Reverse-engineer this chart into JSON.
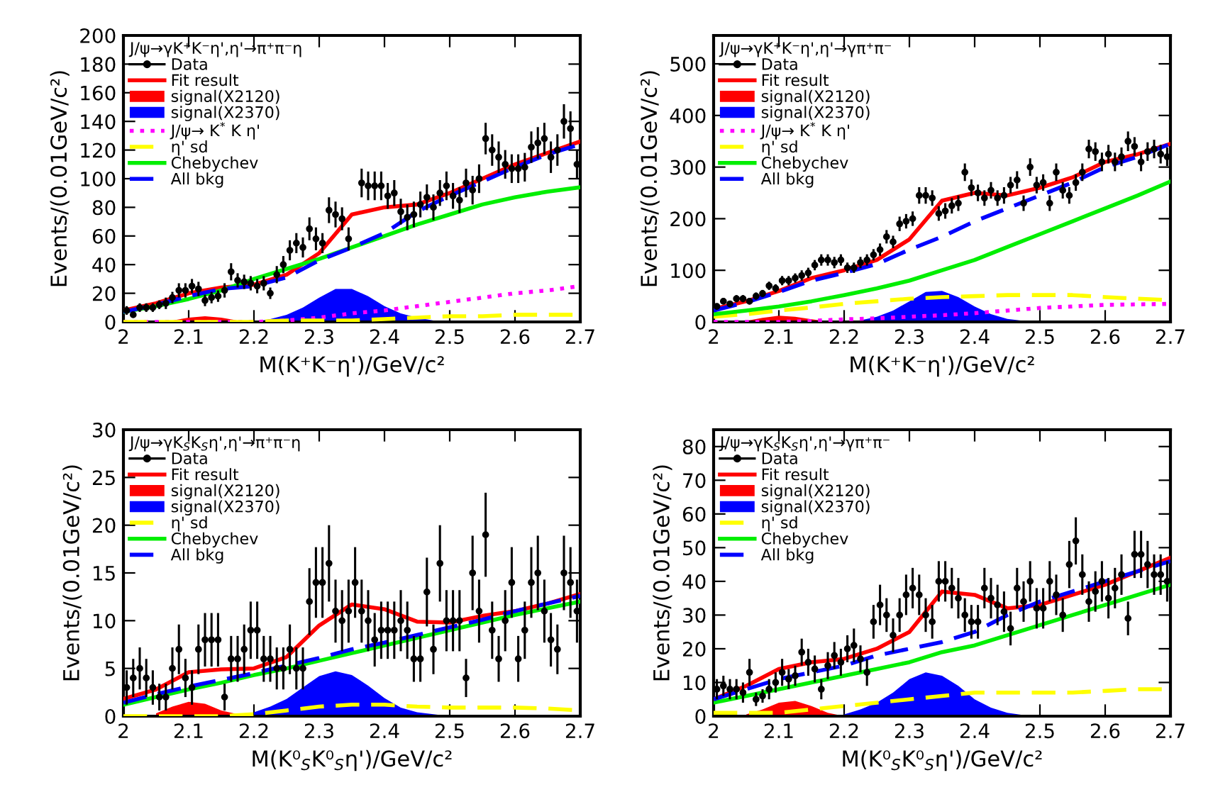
{
  "chart_data": [
    {
      "type": "scatter",
      "legend": "top left",
      "legend_title": "J/ψ→γK⁺K⁻η',η'→π⁺π⁻η",
      "xlabel": "M(K⁺K⁻η')/GeV/c²",
      "ylabel": "Events/(0.01GeV/c²)",
      "xlim": [
        2,
        2.7
      ],
      "xticks": [
        2,
        2.1,
        2.2,
        2.3,
        2.4,
        2.5,
        2.6,
        2.7
      ],
      "ylim": [
        0,
        200
      ],
      "yticks": [
        0,
        20,
        40,
        60,
        80,
        100,
        120,
        140,
        160,
        180,
        200
      ],
      "series": [
        {
          "name": "Data",
          "color": "#000000",
          "marker": "circle",
          "x": [
            2.005,
            2.015,
            2.025,
            2.035,
            2.045,
            2.055,
            2.065,
            2.075,
            2.085,
            2.095,
            2.105,
            2.115,
            2.125,
            2.135,
            2.145,
            2.155,
            2.165,
            2.175,
            2.185,
            2.195,
            2.205,
            2.215,
            2.225,
            2.235,
            2.245,
            2.255,
            2.265,
            2.275,
            2.285,
            2.295,
            2.305,
            2.315,
            2.325,
            2.335,
            2.345,
            2.365,
            2.375,
            2.385,
            2.395,
            2.405,
            2.415,
            2.425,
            2.435,
            2.445,
            2.455,
            2.465,
            2.475,
            2.485,
            2.495,
            2.505,
            2.515,
            2.525,
            2.535,
            2.545,
            2.555,
            2.565,
            2.575,
            2.585,
            2.595,
            2.605,
            2.615,
            2.625,
            2.635,
            2.645,
            2.655,
            2.665,
            2.675,
            2.685,
            2.695
          ],
          "values": [
            8,
            5,
            10,
            10,
            10,
            12,
            13,
            17,
            22,
            22,
            25,
            23,
            15,
            17,
            18,
            22,
            35,
            29,
            28,
            27,
            25,
            27,
            20,
            33,
            40,
            50,
            55,
            52,
            65,
            58,
            55,
            78,
            75,
            72,
            58,
            97,
            95,
            95,
            95,
            88,
            90,
            77,
            73,
            75,
            82,
            87,
            80,
            90,
            95,
            88,
            85,
            97,
            92,
            100,
            128,
            120,
            115,
            110,
            107,
            107,
            108,
            122,
            125,
            128,
            115,
            120,
            140,
            135,
            110
          ],
          "errors": [
            3,
            2,
            3,
            3,
            3,
            3,
            4,
            4,
            5,
            5,
            5,
            5,
            4,
            4,
            4,
            5,
            6,
            5,
            5,
            5,
            5,
            5,
            4,
            6,
            6,
            7,
            7,
            7,
            8,
            8,
            7,
            9,
            9,
            8,
            8,
            10,
            10,
            10,
            10,
            9,
            9,
            9,
            9,
            9,
            9,
            9,
            9,
            9,
            10,
            9,
            9,
            10,
            10,
            10,
            11,
            11,
            11,
            10,
            10,
            10,
            10,
            11,
            11,
            11,
            11,
            11,
            12,
            12,
            10
          ]
        },
        {
          "name": "Fit result",
          "type": "line",
          "color": "#ff0000",
          "line_style": "solid",
          "x": [
            2,
            2.05,
            2.1,
            2.15,
            2.2,
            2.25,
            2.3,
            2.35,
            2.4,
            2.45,
            2.5,
            2.55,
            2.6,
            2.65,
            2.7
          ],
          "values": [
            8,
            13,
            20,
            24,
            26,
            33,
            48,
            75,
            80,
            82,
            90,
            100,
            110,
            118,
            126
          ]
        },
        {
          "name": "signal(X2120)",
          "type": "area",
          "color": "#ff0000",
          "x": [
            2.05,
            2.075,
            2.1,
            2.125,
            2.15,
            2.175,
            2.2
          ],
          "values": [
            0,
            1,
            3,
            4,
            3,
            1,
            0
          ]
        },
        {
          "name": "signal(X2370)",
          "type": "area",
          "color": "#0000ff",
          "x": [
            2.2,
            2.225,
            2.25,
            2.275,
            2.3,
            2.325,
            2.35,
            2.375,
            2.4,
            2.425,
            2.45,
            2.475,
            2.5
          ],
          "values": [
            0,
            2,
            5,
            10,
            17,
            23,
            23,
            18,
            11,
            6,
            3,
            1,
            0
          ]
        },
        {
          "name": "J/ψ→ K$^{*}$ K η'",
          "type": "line",
          "color": "#ff00ff",
          "line_style": "dotted",
          "x": [
            2,
            2.05,
            2.1,
            2.15,
            2.2,
            2.25,
            2.3,
            2.35,
            2.4,
            2.45,
            2.5,
            2.55,
            2.6,
            2.65,
            2.7
          ],
          "values": [
            0,
            0,
            0,
            0,
            0,
            1,
            3,
            6,
            8,
            11,
            14,
            17,
            20,
            22,
            25
          ]
        },
        {
          "name": "η' sd",
          "type": "line",
          "color": "#ffff00",
          "line_style": "dashed",
          "x": [
            2,
            2.05,
            2.1,
            2.15,
            2.2,
            2.25,
            2.3,
            2.35,
            2.4,
            2.45,
            2.5,
            2.55,
            2.6,
            2.65,
            2.7
          ],
          "values": [
            0,
            0,
            0,
            0,
            0,
            1,
            1,
            1,
            2,
            3,
            4,
            4,
            5,
            5,
            5
          ]
        },
        {
          "name": "Chebychev",
          "type": "line",
          "color": "#00ee00",
          "line_style": "solid",
          "x": [
            2,
            2.05,
            2.1,
            2.15,
            2.2,
            2.25,
            2.3,
            2.35,
            2.4,
            2.45,
            2.5,
            2.55,
            2.6,
            2.65,
            2.7
          ],
          "values": [
            7,
            11,
            16,
            22,
            30,
            37,
            44,
            52,
            60,
            68,
            75,
            82,
            87,
            91,
            94
          ]
        },
        {
          "name": "All bkg",
          "type": "line",
          "color": "#0000ff",
          "line_style": "dashed",
          "x": [
            2,
            2.05,
            2.1,
            2.15,
            2.2,
            2.25,
            2.3,
            2.35,
            2.4,
            2.45,
            2.5,
            2.55,
            2.6,
            2.65,
            2.7
          ],
          "values": [
            7,
            12,
            18,
            23,
            25,
            31,
            43,
            52,
            62,
            77,
            88,
            98,
            108,
            117,
            124
          ]
        }
      ]
    },
    {
      "type": "scatter",
      "legend": "top left",
      "legend_title": "J/ψ→γK⁺K⁻η',η'→γπ⁺π⁻",
      "xlabel": "M(K⁺K⁻η')/GeV/c²",
      "ylabel": "Events/(0.01GeV/c²)",
      "xlim": [
        2,
        2.7
      ],
      "xticks": [
        2,
        2.1,
        2.2,
        2.3,
        2.4,
        2.5,
        2.6,
        2.7
      ],
      "ylim": [
        0,
        555
      ],
      "yticks": [
        0,
        100,
        200,
        300,
        400,
        500
      ],
      "series": [
        {
          "name": "Data",
          "color": "#000000",
          "marker": "circle",
          "x": [
            2.005,
            2.015,
            2.025,
            2.035,
            2.045,
            2.055,
            2.065,
            2.075,
            2.085,
            2.095,
            2.105,
            2.115,
            2.125,
            2.135,
            2.145,
            2.155,
            2.165,
            2.175,
            2.185,
            2.195,
            2.205,
            2.215,
            2.225,
            2.235,
            2.245,
            2.255,
            2.265,
            2.275,
            2.285,
            2.295,
            2.305,
            2.315,
            2.325,
            2.335,
            2.345,
            2.355,
            2.365,
            2.375,
            2.385,
            2.395,
            2.405,
            2.415,
            2.425,
            2.435,
            2.445,
            2.455,
            2.465,
            2.475,
            2.485,
            2.495,
            2.505,
            2.515,
            2.525,
            2.535,
            2.545,
            2.555,
            2.565,
            2.575,
            2.585,
            2.595,
            2.605,
            2.615,
            2.625,
            2.635,
            2.645,
            2.655,
            2.665,
            2.675,
            2.685,
            2.695
          ],
          "values": [
            30,
            40,
            35,
            45,
            45,
            40,
            50,
            55,
            70,
            65,
            80,
            80,
            85,
            90,
            95,
            110,
            120,
            120,
            115,
            120,
            105,
            105,
            115,
            120,
            130,
            140,
            165,
            155,
            190,
            195,
            200,
            245,
            245,
            240,
            210,
            215,
            225,
            230,
            290,
            260,
            250,
            240,
            255,
            240,
            245,
            265,
            275,
            230,
            300,
            265,
            270,
            230,
            290,
            255,
            245,
            270,
            290,
            335,
            330,
            310,
            325,
            310,
            320,
            350,
            340,
            310,
            330,
            335,
            325,
            320
          ],
          "errors": [
            6,
            6,
            6,
            7,
            7,
            6,
            7,
            7,
            8,
            8,
            9,
            9,
            9,
            10,
            10,
            10,
            11,
            11,
            11,
            11,
            10,
            10,
            11,
            11,
            11,
            12,
            13,
            12,
            14,
            14,
            14,
            16,
            16,
            15,
            14,
            15,
            15,
            15,
            17,
            16,
            16,
            15,
            16,
            15,
            16,
            16,
            17,
            15,
            17,
            16,
            16,
            15,
            17,
            16,
            16,
            16,
            17,
            18,
            18,
            18,
            18,
            18,
            18,
            19,
            18,
            18,
            18,
            18,
            18,
            18
          ]
        },
        {
          "name": "Fit result",
          "type": "line",
          "color": "#ff0000",
          "line_style": "solid",
          "x": [
            2,
            2.05,
            2.1,
            2.15,
            2.2,
            2.25,
            2.3,
            2.35,
            2.4,
            2.45,
            2.5,
            2.55,
            2.6,
            2.65,
            2.7
          ],
          "values": [
            25,
            40,
            60,
            85,
            100,
            120,
            160,
            235,
            250,
            245,
            260,
            280,
            310,
            325,
            345
          ]
        },
        {
          "name": "signal(X2120)",
          "type": "area",
          "color": "#ff0000",
          "x": [
            2.05,
            2.075,
            2.1,
            2.125,
            2.15,
            2.175,
            2.2
          ],
          "values": [
            2,
            8,
            12,
            10,
            5,
            1,
            0
          ]
        },
        {
          "name": "signal(X2370)",
          "type": "area",
          "color": "#0000ff",
          "x": [
            2.2,
            2.225,
            2.25,
            2.275,
            2.3,
            2.325,
            2.35,
            2.375,
            2.4,
            2.425,
            2.45,
            2.475,
            2.5
          ],
          "values": [
            0,
            3,
            10,
            22,
            40,
            58,
            60,
            48,
            30,
            15,
            6,
            2,
            0
          ]
        },
        {
          "name": "J/ψ→ K$^{*}$ K η'",
          "type": "line",
          "color": "#ff00ff",
          "line_style": "dotted",
          "x": [
            2,
            2.05,
            2.1,
            2.15,
            2.2,
            2.25,
            2.3,
            2.35,
            2.4,
            2.45,
            2.5,
            2.55,
            2.6,
            2.65,
            2.7
          ],
          "values": [
            0,
            0,
            0,
            2,
            5,
            7,
            10,
            13,
            17,
            22,
            27,
            30,
            33,
            34,
            35
          ]
        },
        {
          "name": "η' sd",
          "type": "line",
          "color": "#ffff00",
          "line_style": "dashed",
          "x": [
            2,
            2.05,
            2.1,
            2.15,
            2.2,
            2.25,
            2.3,
            2.35,
            2.4,
            2.45,
            2.5,
            2.55,
            2.6,
            2.65,
            2.7
          ],
          "values": [
            10,
            15,
            22,
            28,
            35,
            40,
            45,
            48,
            50,
            52,
            52,
            52,
            48,
            45,
            42
          ]
        },
        {
          "name": "Chebychev",
          "type": "line",
          "color": "#00ee00",
          "line_style": "solid",
          "x": [
            2,
            2.05,
            2.1,
            2.15,
            2.2,
            2.25,
            2.3,
            2.35,
            2.4,
            2.45,
            2.5,
            2.55,
            2.6,
            2.65,
            2.7
          ],
          "values": [
            15,
            22,
            30,
            40,
            52,
            65,
            80,
            100,
            120,
            145,
            170,
            195,
            220,
            245,
            272
          ]
        },
        {
          "name": "All bkg",
          "type": "line",
          "color": "#0000ff",
          "line_style": "dashed",
          "x": [
            2,
            2.05,
            2.1,
            2.15,
            2.2,
            2.25,
            2.3,
            2.35,
            2.4,
            2.45,
            2.5,
            2.55,
            2.6,
            2.65,
            2.7
          ],
          "values": [
            22,
            38,
            58,
            80,
            95,
            112,
            140,
            165,
            195,
            220,
            245,
            270,
            300,
            320,
            345
          ]
        }
      ]
    },
    {
      "type": "scatter",
      "legend": "top left",
      "legend_title": "J/ψ→γK$_{S}$K$_{S}$η',η'→π⁺π⁻η",
      "xlabel": "M(K⁰$_{S}$K⁰$_{S}$η')/GeV/c²",
      "ylabel": "Events/(0.01GeV/c²)",
      "xlim": [
        2,
        2.7
      ],
      "xticks": [
        2,
        2.1,
        2.2,
        2.3,
        2.4,
        2.5,
        2.6,
        2.7
      ],
      "ylim": [
        0,
        30
      ],
      "yticks": [
        0,
        5,
        10,
        15,
        20,
        25,
        30
      ],
      "series": [
        {
          "name": "Data",
          "color": "#000000",
          "marker": "circle",
          "x": [
            2.005,
            2.015,
            2.025,
            2.035,
            2.045,
            2.055,
            2.065,
            2.075,
            2.085,
            2.095,
            2.105,
            2.115,
            2.125,
            2.135,
            2.145,
            2.155,
            2.165,
            2.175,
            2.185,
            2.195,
            2.205,
            2.215,
            2.225,
            2.235,
            2.245,
            2.255,
            2.265,
            2.275,
            2.285,
            2.295,
            2.305,
            2.315,
            2.325,
            2.335,
            2.345,
            2.355,
            2.365,
            2.375,
            2.385,
            2.395,
            2.405,
            2.415,
            2.425,
            2.435,
            2.445,
            2.455,
            2.465,
            2.475,
            2.485,
            2.495,
            2.505,
            2.515,
            2.525,
            2.535,
            2.545,
            2.555,
            2.565,
            2.575,
            2.585,
            2.595,
            2.605,
            2.615,
            2.625,
            2.635,
            2.645,
            2.655,
            2.665,
            2.675,
            2.685,
            2.695
          ],
          "values": [
            3,
            4,
            5,
            4,
            3,
            2,
            2,
            5,
            7,
            4,
            3,
            7,
            8,
            8,
            8,
            2,
            6,
            6,
            7,
            9,
            9,
            6,
            6,
            5,
            5,
            7,
            5,
            5,
            12,
            14,
            14,
            16,
            11,
            10,
            11,
            14,
            11,
            10,
            8,
            9,
            9,
            9,
            10,
            9,
            6,
            6,
            13,
            7,
            16,
            10,
            10,
            10,
            4,
            15,
            11,
            19,
            9,
            6,
            10,
            14,
            6,
            9,
            14,
            15,
            11,
            8,
            7,
            15,
            14,
            11
          ],
          "errors": [
            1.8,
            2,
            2.2,
            2,
            1.8,
            1.4,
            1.4,
            2.2,
            2.6,
            2,
            1.8,
            2.6,
            2.8,
            2.8,
            2.8,
            1.4,
            2.4,
            2.4,
            2.6,
            3,
            3,
            2.4,
            2.4,
            2.2,
            2.2,
            2.6,
            2.2,
            2.2,
            3.5,
            3.7,
            3.7,
            4,
            3.3,
            3.2,
            3.3,
            3.7,
            3.3,
            3.2,
            2.8,
            3,
            3,
            3,
            3.2,
            3,
            2.4,
            2.4,
            3.6,
            2.6,
            4,
            3.2,
            3.2,
            3.2,
            2,
            3.9,
            3.3,
            4.4,
            3,
            2.4,
            3.2,
            3.7,
            2.4,
            3,
            3.7,
            3.9,
            3.3,
            2.8,
            2.6,
            3.9,
            3.7,
            3.3
          ]
        },
        {
          "name": "Fit result",
          "type": "line",
          "color": "#ff0000",
          "line_style": "solid",
          "x": [
            2,
            2.05,
            2.1,
            2.15,
            2.2,
            2.25,
            2.3,
            2.35,
            2.4,
            2.45,
            2.5,
            2.55,
            2.6,
            2.65,
            2.7
          ],
          "values": [
            1.8,
            2.8,
            4.6,
            4.9,
            5.0,
            6.2,
            9.5,
            11.7,
            11.2,
            9.9,
            9.8,
            10.5,
            11.0,
            11.8,
            12.8
          ]
        },
        {
          "name": "signal(X2120)",
          "type": "area",
          "color": "#ff0000",
          "x": [
            2.05,
            2.075,
            2.1,
            2.125,
            2.15,
            2.175,
            2.2
          ],
          "values": [
            0.3,
            1.0,
            1.5,
            1.3,
            0.6,
            0.2,
            0
          ]
        },
        {
          "name": "signal(X2370)",
          "type": "area",
          "color": "#0000ff",
          "x": [
            2.2,
            2.225,
            2.25,
            2.275,
            2.3,
            2.325,
            2.35,
            2.375,
            2.4,
            2.425,
            2.45,
            2.475,
            2.5
          ],
          "values": [
            0.4,
            1.0,
            1.8,
            3.0,
            4.2,
            4.7,
            4.3,
            3.2,
            1.9,
            0.9,
            0.4,
            0.2,
            0
          ]
        },
        {
          "name": "η' sd",
          "type": "line",
          "color": "#ffff00",
          "line_style": "dashed",
          "x": [
            2,
            2.05,
            2.1,
            2.15,
            2.2,
            2.25,
            2.3,
            2.35,
            2.4,
            2.45,
            2.5,
            2.55,
            2.6,
            2.65,
            2.7
          ],
          "values": [
            0,
            0,
            0,
            0,
            0.2,
            0.6,
            1.0,
            1.2,
            1.2,
            1.0,
            0.9,
            0.9,
            0.9,
            0.8,
            0.6
          ]
        },
        {
          "name": "Chebychev",
          "type": "line",
          "color": "#00ee00",
          "line_style": "solid",
          "x": [
            2,
            2.05,
            2.1,
            2.15,
            2.2,
            2.25,
            2.3,
            2.35,
            2.4,
            2.45,
            2.5,
            2.55,
            2.6,
            2.65,
            2.7
          ],
          "values": [
            1.2,
            2.0,
            2.8,
            3.5,
            4.3,
            5.0,
            5.8,
            6.6,
            7.4,
            8.2,
            9.0,
            9.8,
            10.6,
            11.3,
            12.0
          ]
        },
        {
          "name": "All bkg",
          "type": "line",
          "color": "#0000ff",
          "line_style": "dashed",
          "x": [
            2,
            2.05,
            2.1,
            2.15,
            2.2,
            2.25,
            2.3,
            2.35,
            2.4,
            2.45,
            2.5,
            2.55,
            2.6,
            2.65,
            2.7
          ],
          "values": [
            1.4,
            2.3,
            3.1,
            3.8,
            4.5,
            5.3,
            6.1,
            7.0,
            7.7,
            8.5,
            9.3,
            10.1,
            11.0,
            11.8,
            12.6
          ]
        }
      ]
    },
    {
      "type": "scatter",
      "legend": "top left",
      "legend_title": "J/ψ→γK$_{S}$K$_{S}$η',η'→γπ⁺π⁻",
      "xlabel": "M(K⁰$_{S}$K⁰$_{S}$η')/GeV/c²",
      "ylabel": "Events/(0.01GeV/c²)",
      "xlim": [
        2,
        2.7
      ],
      "xticks": [
        2,
        2.1,
        2.2,
        2.3,
        2.4,
        2.5,
        2.6,
        2.7
      ],
      "ylim": [
        0,
        85
      ],
      "yticks": [
        0,
        10,
        20,
        30,
        40,
        50,
        60,
        70,
        80
      ],
      "series": [
        {
          "name": "Data",
          "color": "#000000",
          "marker": "circle",
          "x": [
            2.005,
            2.015,
            2.025,
            2.035,
            2.045,
            2.055,
            2.065,
            2.075,
            2.085,
            2.095,
            2.105,
            2.115,
            2.125,
            2.135,
            2.145,
            2.155,
            2.165,
            2.175,
            2.185,
            2.195,
            2.205,
            2.215,
            2.225,
            2.235,
            2.245,
            2.255,
            2.265,
            2.275,
            2.285,
            2.295,
            2.305,
            2.315,
            2.325,
            2.335,
            2.345,
            2.355,
            2.365,
            2.375,
            2.385,
            2.395,
            2.405,
            2.415,
            2.425,
            2.435,
            2.445,
            2.455,
            2.465,
            2.475,
            2.485,
            2.495,
            2.505,
            2.515,
            2.525,
            2.535,
            2.545,
            2.555,
            2.565,
            2.575,
            2.585,
            2.595,
            2.605,
            2.615,
            2.625,
            2.635,
            2.645,
            2.655,
            2.665,
            2.675,
            2.685,
            2.695
          ],
          "values": [
            8,
            9,
            8,
            8,
            7,
            13,
            5,
            6,
            8,
            10,
            13,
            11,
            12,
            19,
            16,
            14,
            8,
            15,
            18,
            16,
            20,
            21,
            17,
            13,
            28,
            33,
            30,
            24,
            30,
            36,
            38,
            36,
            30,
            28,
            40,
            40,
            38,
            35,
            30,
            28,
            28,
            38,
            35,
            33,
            31,
            26,
            38,
            34,
            40,
            32,
            32,
            40,
            36,
            30,
            45,
            52,
            42,
            34,
            37,
            40,
            35,
            38,
            42,
            29,
            48,
            48,
            45,
            42,
            42,
            40
          ],
          "errors": [
            3,
            3,
            3,
            3,
            3,
            4,
            2,
            2,
            3,
            3,
            4,
            3,
            3,
            4,
            4,
            4,
            3,
            4,
            4,
            4,
            4,
            5,
            4,
            4,
            5,
            6,
            5,
            5,
            5,
            6,
            6,
            6,
            5,
            5,
            6,
            6,
            6,
            6,
            5,
            5,
            5,
            6,
            6,
            6,
            6,
            5,
            6,
            6,
            6,
            6,
            6,
            6,
            6,
            5,
            7,
            7,
            6,
            6,
            6,
            6,
            6,
            6,
            6,
            5,
            7,
            7,
            7,
            6,
            6,
            6
          ]
        },
        {
          "name": "Fit result",
          "type": "line",
          "color": "#ff0000",
          "line_style": "solid",
          "x": [
            2,
            2.05,
            2.1,
            2.15,
            2.2,
            2.25,
            2.3,
            2.35,
            2.4,
            2.45,
            2.5,
            2.55,
            2.6,
            2.65,
            2.7
          ],
          "values": [
            5,
            9,
            14,
            16,
            17,
            20,
            25,
            37,
            36,
            32,
            33,
            36,
            39,
            43,
            47
          ]
        },
        {
          "name": "signal(X2120)",
          "type": "area",
          "color": "#ff0000",
          "x": [
            2.05,
            2.075,
            2.1,
            2.125,
            2.15,
            2.175,
            2.2
          ],
          "values": [
            0.5,
            2,
            4,
            4.5,
            3,
            1,
            0
          ]
        },
        {
          "name": "signal(X2370)",
          "type": "area",
          "color": "#0000ff",
          "x": [
            2.2,
            2.225,
            2.25,
            2.275,
            2.3,
            2.325,
            2.35,
            2.375,
            2.4,
            2.425,
            2.45,
            2.475,
            2.5
          ],
          "values": [
            0.5,
            2,
            4,
            7,
            11,
            13,
            12,
            9,
            5,
            2.5,
            1,
            0.3,
            0
          ]
        },
        {
          "name": "η' sd",
          "type": "line",
          "color": "#ffff00",
          "line_style": "dashed",
          "x": [
            2,
            2.05,
            2.1,
            2.15,
            2.2,
            2.25,
            2.3,
            2.35,
            2.4,
            2.45,
            2.5,
            2.55,
            2.6,
            2.65,
            2.7
          ],
          "values": [
            1,
            1,
            1,
            2,
            3,
            4,
            5,
            6,
            7,
            7,
            7,
            7,
            7.5,
            8,
            8
          ]
        },
        {
          "name": "Chebychev",
          "type": "line",
          "color": "#00ee00",
          "line_style": "solid",
          "x": [
            2,
            2.05,
            2.1,
            2.15,
            2.2,
            2.25,
            2.3,
            2.35,
            2.4,
            2.45,
            2.5,
            2.55,
            2.6,
            2.65,
            2.7
          ],
          "values": [
            4,
            6,
            8,
            10,
            12,
            14,
            16,
            19,
            21,
            24,
            27,
            30,
            33,
            36,
            39
          ]
        },
        {
          "name": "All bkg",
          "type": "line",
          "color": "#0000ff",
          "line_style": "dashed",
          "x": [
            2,
            2.05,
            2.1,
            2.15,
            2.2,
            2.25,
            2.3,
            2.35,
            2.4,
            2.45,
            2.5,
            2.55,
            2.6,
            2.65,
            2.7
          ],
          "values": [
            5,
            8,
            11,
            13,
            15,
            18,
            20,
            22,
            25,
            30,
            34,
            37,
            40,
            43,
            46
          ]
        }
      ]
    }
  ]
}
